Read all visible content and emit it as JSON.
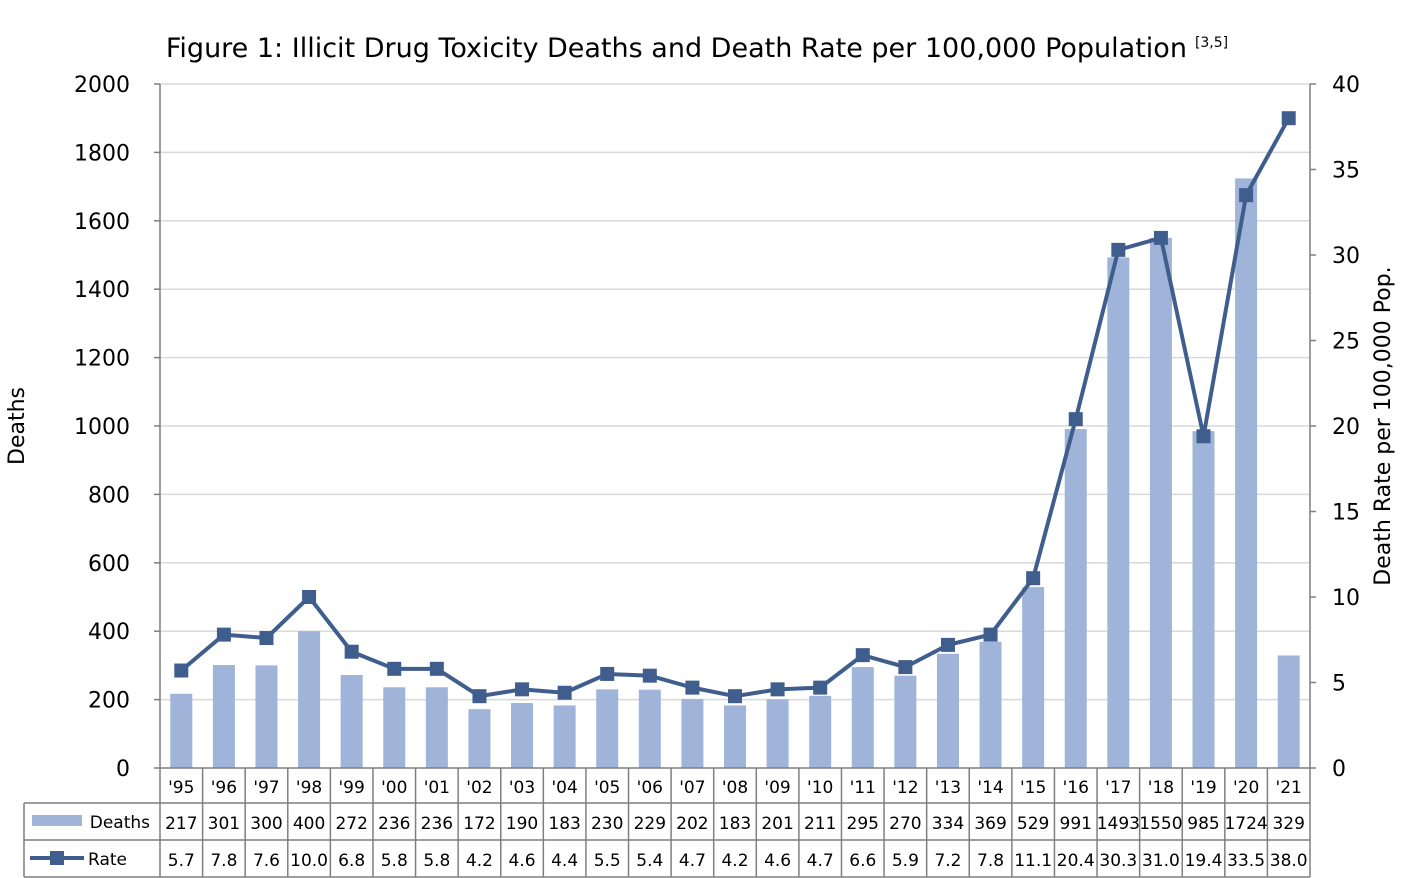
{
  "chart_data": {
    "type": "bar",
    "title": "Figure 1: Illicit Drug Toxicity Deaths and Death Rate per 100,000 Population",
    "title_superscript": "[3,5]",
    "categories": [
      "'95",
      "'96",
      "'97",
      "'98",
      "'99",
      "'00",
      "'01",
      "'02",
      "'03",
      "'04",
      "'05",
      "'06",
      "'07",
      "'08",
      "'09",
      "'10",
      "'11",
      "'12",
      "'13",
      "'14",
      "'15",
      "'16",
      "'17",
      "'18",
      "'19",
      "'20",
      "'21"
    ],
    "series": [
      {
        "name": "Deaths",
        "type": "bar",
        "axis": "left",
        "color": "#9fb4d8",
        "values": [
          217,
          301,
          300,
          400,
          272,
          236,
          236,
          172,
          190,
          183,
          230,
          229,
          202,
          183,
          201,
          211,
          295,
          270,
          334,
          369,
          529,
          991,
          1493,
          1550,
          985,
          1724,
          329
        ]
      },
      {
        "name": "Rate",
        "type": "line",
        "axis": "right",
        "color": "#3f5e8e",
        "values": [
          5.7,
          7.8,
          7.6,
          10.0,
          6.8,
          5.8,
          5.8,
          4.2,
          4.6,
          4.4,
          5.5,
          5.4,
          4.7,
          4.2,
          4.6,
          4.7,
          6.6,
          5.9,
          7.2,
          7.8,
          11.1,
          20.4,
          30.3,
          31.0,
          19.4,
          33.5,
          38.0
        ],
        "labels": [
          "5.7",
          "7.8",
          "7.6",
          "10.0",
          "6.8",
          "5.8",
          "5.8",
          "4.2",
          "4.6",
          "4.4",
          "5.5",
          "5.4",
          "4.7",
          "4.2",
          "4.6",
          "4.7",
          "6.6",
          "5.9",
          "7.2",
          "7.8",
          "11.1",
          "20.4",
          "30.3",
          "31.0",
          "19.4",
          "33.5",
          "38.0"
        ]
      }
    ],
    "ylabel": "Deaths",
    "y2label": "Death Rate per 100,000 Pop.",
    "ylim": [
      0,
      2000
    ],
    "y2lim": [
      0,
      40
    ],
    "yticks": [
      0,
      200,
      400,
      600,
      800,
      1000,
      1200,
      1400,
      1600,
      1800,
      2000
    ],
    "y2ticks": [
      0,
      5,
      10,
      15,
      20,
      25,
      30,
      35,
      40
    ],
    "grid": true,
    "legend": "data-table-bottom"
  }
}
